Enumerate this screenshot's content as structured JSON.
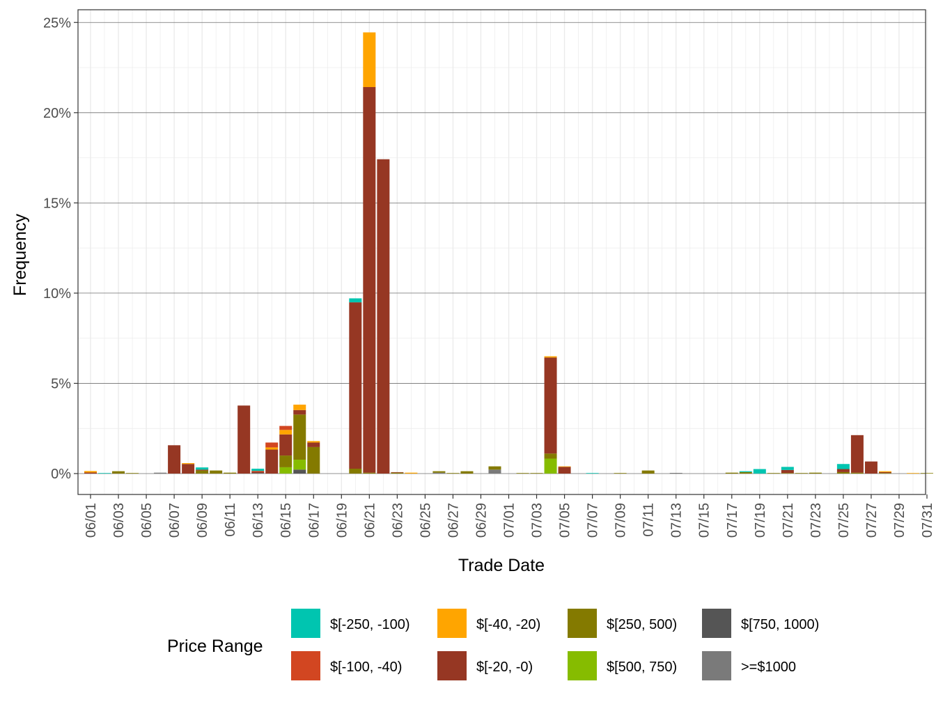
{
  "chart_data": {
    "type": "bar",
    "stacked": true,
    "xlabel": "Trade Date",
    "ylabel": "Frequency",
    "ylim": [
      -0.01,
      0.25
    ],
    "y_ticks": [
      0,
      0.05,
      0.1,
      0.15,
      0.2,
      0.25
    ],
    "y_tick_labels": [
      "0%",
      "5%",
      "10%",
      "15%",
      "20%",
      "25%"
    ],
    "x_tick_labels": [
      "06/01",
      "06/03",
      "06/05",
      "06/07",
      "06/09",
      "06/11",
      "06/13",
      "06/15",
      "06/17",
      "06/19",
      "06/21",
      "06/23",
      "06/25",
      "06/27",
      "06/29",
      "07/01",
      "07/03",
      "07/05",
      "07/07",
      "07/09",
      "07/11",
      "07/13",
      "07/15",
      "07/17",
      "07/19",
      "07/21",
      "07/23",
      "07/25",
      "07/27",
      "07/29",
      "07/31"
    ],
    "grid": true,
    "legend": {
      "title": "Price Range",
      "placement": "bottom",
      "entries": [
        {
          "label": "$[-250, -100)",
          "color": "#00C5B0"
        },
        {
          "label": "$[-100, -40)",
          "color": "#D24621"
        },
        {
          "label": "$[-40, -20)",
          "color": "#FFA500"
        },
        {
          "label": "$[-20, -0)",
          "color": "#963723"
        },
        {
          "label": "$[250, 500)",
          "color": "#847A00"
        },
        {
          "label": "$[500, 750)",
          "color": "#86BC00"
        },
        {
          "label": "$[750, 1000)",
          "color": "#555555"
        },
        {
          "label": ">=$1000",
          "color": "#7A7A7A"
        }
      ]
    },
    "series_keys": [
      "c250_100",
      "c100_40",
      "c40_20",
      "c20_0",
      "p250_500",
      "p500_750",
      "p750_1000",
      "p1000"
    ],
    "stack_order": [
      "p1000",
      "p750_1000",
      "p500_750",
      "p250_500",
      "c20_0",
      "c40_20",
      "c100_40",
      "c250_100"
    ],
    "colors": {
      "c250_100": "#00C5B0",
      "c100_40": "#D24621",
      "c40_20": "#FFA500",
      "c20_0": "#963723",
      "p250_500": "#847A00",
      "p500_750": "#86BC00",
      "p750_1000": "#555555",
      "p1000": "#7A7A7A"
    },
    "dates": [
      {
        "d": "06/01",
        "v": {
          "c20_0": 0.0006,
          "c40_20": 0.0008
        }
      },
      {
        "d": "06/02",
        "v": {
          "c250_100": 0.0003
        }
      },
      {
        "d": "06/03",
        "v": {
          "p250_500": 0.0013
        }
      },
      {
        "d": "06/04",
        "v": {
          "p250_500": 0.0003
        }
      },
      {
        "d": "06/05",
        "v": {}
      },
      {
        "d": "06/06",
        "v": {
          "p1000": 0.0005
        }
      },
      {
        "d": "06/07",
        "v": {
          "c20_0": 0.0157
        }
      },
      {
        "d": "06/08",
        "v": {
          "c20_0": 0.0053,
          "c40_20": 0.0005
        }
      },
      {
        "d": "06/09",
        "v": {
          "p250_500": 0.0017,
          "c20_0": 0.0005,
          "c250_100": 0.0012
        }
      },
      {
        "d": "06/10",
        "v": {
          "p250_500": 0.0017
        }
      },
      {
        "d": "06/11",
        "v": {
          "p250_500": 0.0005
        }
      },
      {
        "d": "06/12",
        "v": {
          "c20_0": 0.0377
        }
      },
      {
        "d": "06/13",
        "v": {
          "p750_1000": 0.0003,
          "c20_0": 0.0007,
          "c100_40": 0.0005,
          "c250_100": 0.0012
        }
      },
      {
        "d": "06/14",
        "v": {
          "c20_0": 0.0133,
          "c40_20": 0.0012,
          "c100_40": 0.0027
        }
      },
      {
        "d": "06/15",
        "v": {
          "p500_750": 0.0035,
          "p250_500": 0.0065,
          "c20_0": 0.0117,
          "c40_20": 0.0025,
          "c100_40": 0.0022
        }
      },
      {
        "d": "06/16",
        "v": {
          "p750_1000": 0.0022,
          "p500_750": 0.0055,
          "p250_500": 0.025,
          "c20_0": 0.0025,
          "c40_20": 0.003
        }
      },
      {
        "d": "06/17",
        "v": {
          "p250_500": 0.0147,
          "c20_0": 0.0025,
          "c40_20": 0.0008
        }
      },
      {
        "d": "06/18",
        "v": {}
      },
      {
        "d": "06/19",
        "v": {}
      },
      {
        "d": "06/20",
        "v": {
          "p250_500": 0.0027,
          "c20_0": 0.0922,
          "c250_100": 0.0022
        }
      },
      {
        "d": "06/21",
        "v": {
          "p250_500": 0.0005,
          "c20_0": 0.2137,
          "c40_20": 0.0303
        }
      },
      {
        "d": "06/22",
        "v": {
          "c20_0": 0.1742
        }
      },
      {
        "d": "06/23",
        "v": {
          "p250_500": 0.0005,
          "c20_0": 0.0003
        }
      },
      {
        "d": "06/24",
        "v": {
          "c40_20": 0.0005
        }
      },
      {
        "d": "06/25",
        "v": {}
      },
      {
        "d": "06/26",
        "v": {
          "p1000": 0.0005,
          "p250_500": 0.0008
        }
      },
      {
        "d": "06/27",
        "v": {
          "p250_500": 0.0003
        }
      },
      {
        "d": "06/28",
        "v": {
          "p250_500": 0.0013
        }
      },
      {
        "d": "06/29",
        "v": {}
      },
      {
        "d": "06/30",
        "v": {
          "p1000": 0.0022,
          "p250_500": 0.0018
        }
      },
      {
        "d": "07/01",
        "v": {}
      },
      {
        "d": "07/02",
        "v": {
          "p250_500": 0.0003
        }
      },
      {
        "d": "07/03",
        "v": {
          "p250_500": 0.0003
        }
      },
      {
        "d": "07/04",
        "v": {
          "p500_750": 0.0083,
          "p250_500": 0.0028,
          "c20_0": 0.0532,
          "c40_20": 0.0007
        }
      },
      {
        "d": "07/05",
        "v": {
          "c20_0": 0.0037,
          "c40_20": 0.0003
        }
      },
      {
        "d": "07/06",
        "v": {}
      },
      {
        "d": "07/07",
        "v": {
          "c250_100": 0.0003
        }
      },
      {
        "d": "07/08",
        "v": {}
      },
      {
        "d": "07/09",
        "v": {
          "p250_500": 0.0003
        }
      },
      {
        "d": "07/10",
        "v": {}
      },
      {
        "d": "07/11",
        "v": {
          "p250_500": 0.0017
        }
      },
      {
        "d": "07/12",
        "v": {}
      },
      {
        "d": "07/13",
        "v": {
          "p750_1000": 0.0003
        }
      },
      {
        "d": "07/14",
        "v": {}
      },
      {
        "d": "07/15",
        "v": {}
      },
      {
        "d": "07/16",
        "v": {}
      },
      {
        "d": "07/17",
        "v": {
          "p250_500": 0.0005
        }
      },
      {
        "d": "07/18",
        "v": {
          "p250_500": 0.0008,
          "c250_100": 0.0005
        }
      },
      {
        "d": "07/19",
        "v": {
          "c250_100": 0.0025
        }
      },
      {
        "d": "07/20",
        "v": {
          "p250_500": 0.0003
        }
      },
      {
        "d": "07/21",
        "v": {
          "p250_500": 0.0003,
          "c20_0": 0.0017,
          "c250_100": 0.0017
        }
      },
      {
        "d": "07/22",
        "v": {
          "p250_500": 0.0003
        }
      },
      {
        "d": "07/23",
        "v": {
          "p250_500": 0.0005
        }
      },
      {
        "d": "07/24",
        "v": {}
      },
      {
        "d": "07/25",
        "v": {
          "p250_500": 0.0008,
          "c20_0": 0.0017,
          "c250_100": 0.0028
        }
      },
      {
        "d": "07/26",
        "v": {
          "p250_500": 0.0005,
          "c20_0": 0.0208
        }
      },
      {
        "d": "07/27",
        "v": {
          "c20_0": 0.0067
        }
      },
      {
        "d": "07/28",
        "v": {
          "p250_500": 0.0003,
          "c20_0": 0.0005,
          "c40_20": 0.0005
        }
      },
      {
        "d": "07/29",
        "v": {}
      },
      {
        "d": "07/30",
        "v": {
          "c40_20": 0.0003
        }
      },
      {
        "d": "07/31",
        "v": {
          "p250_500": 0.0003
        }
      }
    ]
  }
}
